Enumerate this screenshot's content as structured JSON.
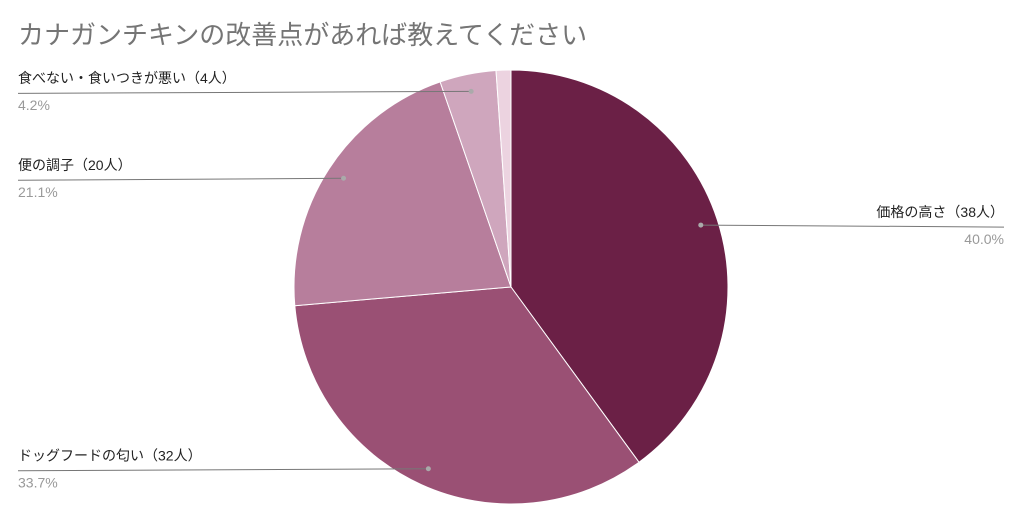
{
  "chart_data": {
    "type": "pie",
    "title": "カナガンチキンの改善点があれば教えてください",
    "categories": [
      "価格の高さ（38人）",
      "ドッグフードの匂い（32人）",
      "便の調子（20人）",
      "食べない・食いつきが悪い（4人）",
      null
    ],
    "values": [
      40.0,
      33.7,
      21.1,
      4.2,
      1.1
    ],
    "value_labels": [
      "40.0%",
      "33.7%",
      "21.1%",
      "4.2%",
      null
    ],
    "colors": [
      "#6b2046",
      "#9a5074",
      "#b77e9c",
      "#cfa6bd",
      "#ecd3e0"
    ]
  }
}
